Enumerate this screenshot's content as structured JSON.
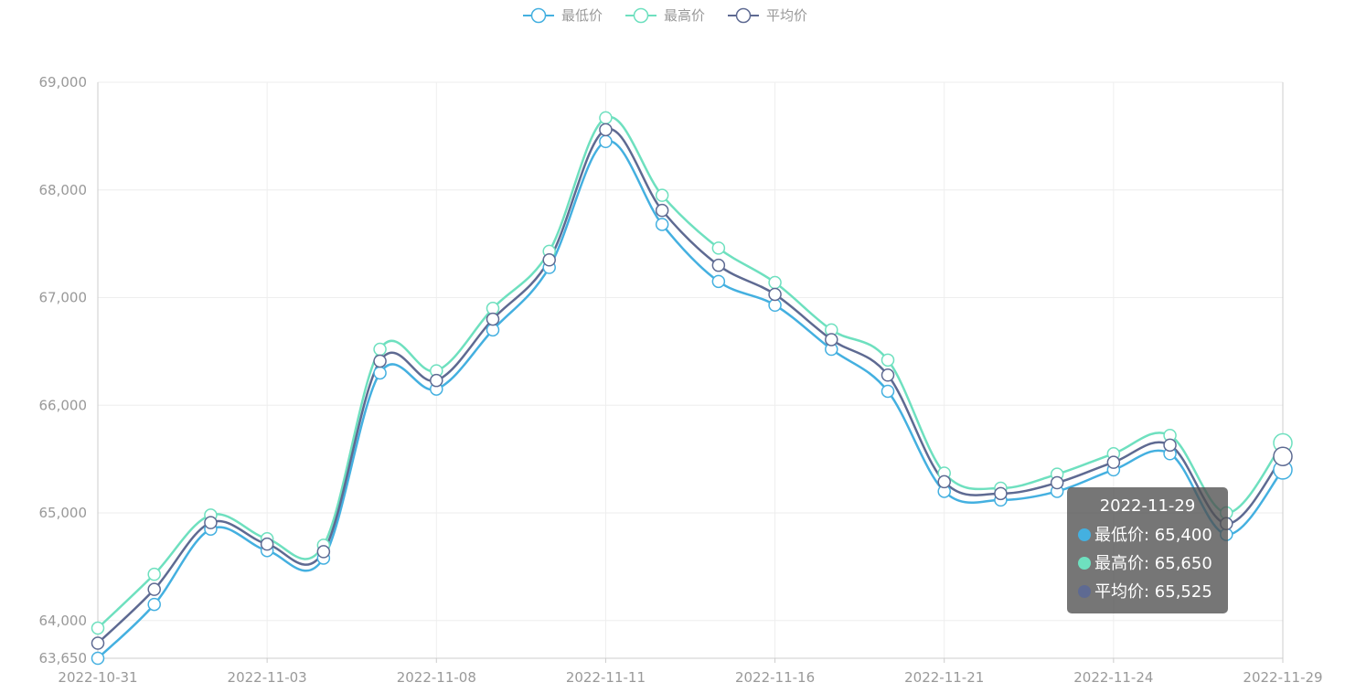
{
  "legend": {
    "items": [
      {
        "label": "最低价",
        "color": "#44b0e0"
      },
      {
        "label": "最高价",
        "color": "#6ee0bf"
      },
      {
        "label": "平均价",
        "color": "#5e6a92"
      }
    ]
  },
  "tooltip": {
    "title": "2022-11-29",
    "rows": [
      {
        "label": "最低价: 65,400",
        "color": "#44b0e0"
      },
      {
        "label": "最高价: 65,650",
        "color": "#6ee0bf"
      },
      {
        "label": "平均价: 65,525",
        "color": "#5e6a92"
      }
    ]
  },
  "chart_data": {
    "type": "line",
    "x": [
      "2022-10-31",
      "2022-11-01",
      "2022-11-02",
      "2022-11-03",
      "2022-11-04",
      "2022-11-07",
      "2022-11-08",
      "2022-11-09",
      "2022-11-10",
      "2022-11-11",
      "2022-11-14",
      "2022-11-15",
      "2022-11-16",
      "2022-11-17",
      "2022-11-18",
      "2022-11-21",
      "2022-11-22",
      "2022-11-23",
      "2022-11-24",
      "2022-11-25",
      "2022-11-28",
      "2022-11-29"
    ],
    "x_tick_labels": [
      "2022-10-31",
      "2022-11-03",
      "2022-11-08",
      "2022-11-11",
      "2022-11-16",
      "2022-11-21",
      "2022-11-24",
      "2022-11-29"
    ],
    "y_tick_labels": [
      "63,650",
      "64,000",
      "65,000",
      "66,000",
      "67,000",
      "68,000",
      "69,000"
    ],
    "y_ticks": [
      63650,
      64000,
      65000,
      66000,
      67000,
      68000,
      69000
    ],
    "ylim": [
      63650,
      69000
    ],
    "grid": true,
    "legend_position": "top-center",
    "series": [
      {
        "name": "最低价",
        "color": "#44b0e0",
        "values": [
          63650,
          64150,
          64850,
          64650,
          64580,
          66300,
          66150,
          66700,
          67280,
          68450,
          67680,
          67150,
          66930,
          66520,
          66130,
          65200,
          65120,
          65200,
          65400,
          65550,
          64800,
          65400
        ]
      },
      {
        "name": "最高价",
        "color": "#6ee0bf",
        "values": [
          63930,
          64430,
          64980,
          64760,
          64700,
          66520,
          66320,
          66900,
          67430,
          68670,
          67950,
          67460,
          67140,
          66700,
          66420,
          65370,
          65230,
          65360,
          65550,
          65720,
          65000,
          65650
        ]
      },
      {
        "name": "平均价",
        "color": "#5e6a92",
        "values": [
          63790,
          64290,
          64910,
          64710,
          64640,
          66410,
          66230,
          66800,
          67350,
          68560,
          67810,
          67300,
          67030,
          66610,
          66280,
          65290,
          65180,
          65280,
          65470,
          65630,
          64900,
          65525
        ]
      }
    ]
  }
}
